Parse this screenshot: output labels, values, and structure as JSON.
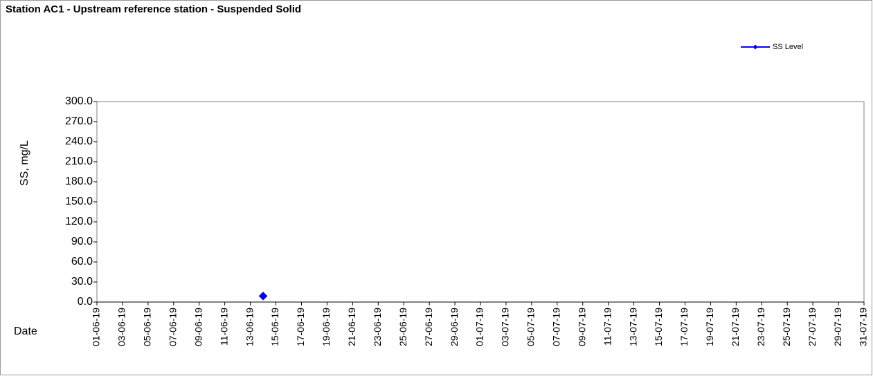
{
  "chart_data": {
    "type": "line",
    "title": "Station AC1 - Upstream reference station - Suspended Solid",
    "y_label": "SS, mg/L",
    "x_label": "Date",
    "legend": "top-right",
    "series": [
      {
        "name": "SS Level",
        "color": "#0000ff",
        "x": [
          "14-06-19"
        ],
        "values": [
          9
        ]
      }
    ],
    "xlim": [
      "01-06-19",
      "31-07-19"
    ],
    "xticks": [
      "01-06-19",
      "03-06-19",
      "05-06-19",
      "07-06-19",
      "09-06-19",
      "11-06-19",
      "13-06-19",
      "15-06-19",
      "17-06-19",
      "19-06-19",
      "21-06-19",
      "23-06-19",
      "25-06-19",
      "27-06-19",
      "29-06-19",
      "01-07-19",
      "03-07-19",
      "05-07-19",
      "07-07-19",
      "09-07-19",
      "11-07-19",
      "13-07-19",
      "15-07-19",
      "17-07-19",
      "19-07-19",
      "21-07-19",
      "23-07-19",
      "25-07-19",
      "27-07-19",
      "29-07-19",
      "31-07-19"
    ],
    "ylim": [
      0,
      300
    ],
    "yticks": [
      {
        "value": 0,
        "label": "0.0"
      },
      {
        "value": 30,
        "label": "30.0"
      },
      {
        "value": 60,
        "label": "60.0"
      },
      {
        "value": 90,
        "label": "90.0"
      },
      {
        "value": 120,
        "label": "120.0"
      },
      {
        "value": 150,
        "label": "150.0"
      },
      {
        "value": 180,
        "label": "180.0"
      },
      {
        "value": 210,
        "label": "210.0"
      },
      {
        "value": 240,
        "label": "240.0"
      },
      {
        "value": 270,
        "label": "270.0"
      },
      {
        "value": 300,
        "label": "300.0"
      }
    ]
  }
}
